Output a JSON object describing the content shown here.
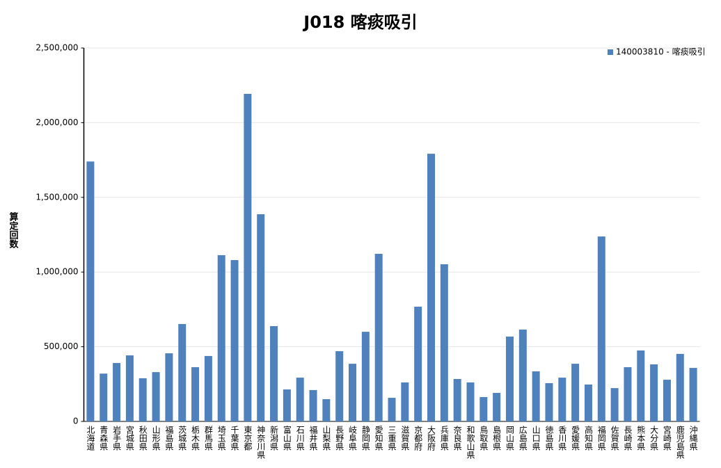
{
  "chart_data": {
    "type": "bar",
    "title": "J018 喀痰吸引",
    "y_label": "算定回数",
    "categories": [
      "北海道",
      "青森県",
      "岩手県",
      "宮城県",
      "秋田県",
      "山形県",
      "福島県",
      "茨城県",
      "栃木県",
      "群馬県",
      "埼玉県",
      "千葉県",
      "東京都",
      "神奈川県",
      "新潟県",
      "富山県",
      "石川県",
      "福井県",
      "山梨県",
      "長野県",
      "岐阜県",
      "静岡県",
      "愛知県",
      "三重県",
      "滋賀県",
      "京都府",
      "大阪府",
      "兵庫県",
      "奈良県",
      "和歌山県",
      "鳥取県",
      "島根県",
      "岡山県",
      "広島県",
      "山口県",
      "徳島県",
      "香川県",
      "愛媛県",
      "高知県",
      "福岡県",
      "佐賀県",
      "長崎県",
      "熊本県",
      "大分県",
      "宮崎県",
      "鹿児島県",
      "沖縄県"
    ],
    "series": [
      {
        "name": "140003810 - 喀痰吸引",
        "color": "#4f81bd",
        "values": [
          1740000,
          320000,
          391000,
          442000,
          289000,
          330000,
          456000,
          652000,
          363000,
          438000,
          1113000,
          1080000,
          2193000,
          1387000,
          638000,
          214000,
          293000,
          210000,
          149000,
          470000,
          386000,
          600000,
          1122000,
          158000,
          261000,
          768000,
          1792000,
          1052000,
          284000,
          261000,
          163000,
          191000,
          568000,
          615000,
          335000,
          256000,
          293000,
          386000,
          247000,
          1238000,
          223000,
          363000,
          475000,
          382000,
          279000,
          452000,
          358000
        ]
      }
    ],
    "ylim": [
      0,
      2500000
    ],
    "yticks": [
      0,
      {
        "value": 500000,
        "label": "500,000"
      },
      {
        "value": 1000000,
        "label": "1,000,000"
      },
      {
        "value": 1500000,
        "label": "1,500,000"
      },
      {
        "value": 2000000,
        "label": "2,000,000"
      },
      {
        "value": 2500000,
        "label": "2,500,000"
      }
    ],
    "grid": true,
    "legend": "top-right"
  }
}
